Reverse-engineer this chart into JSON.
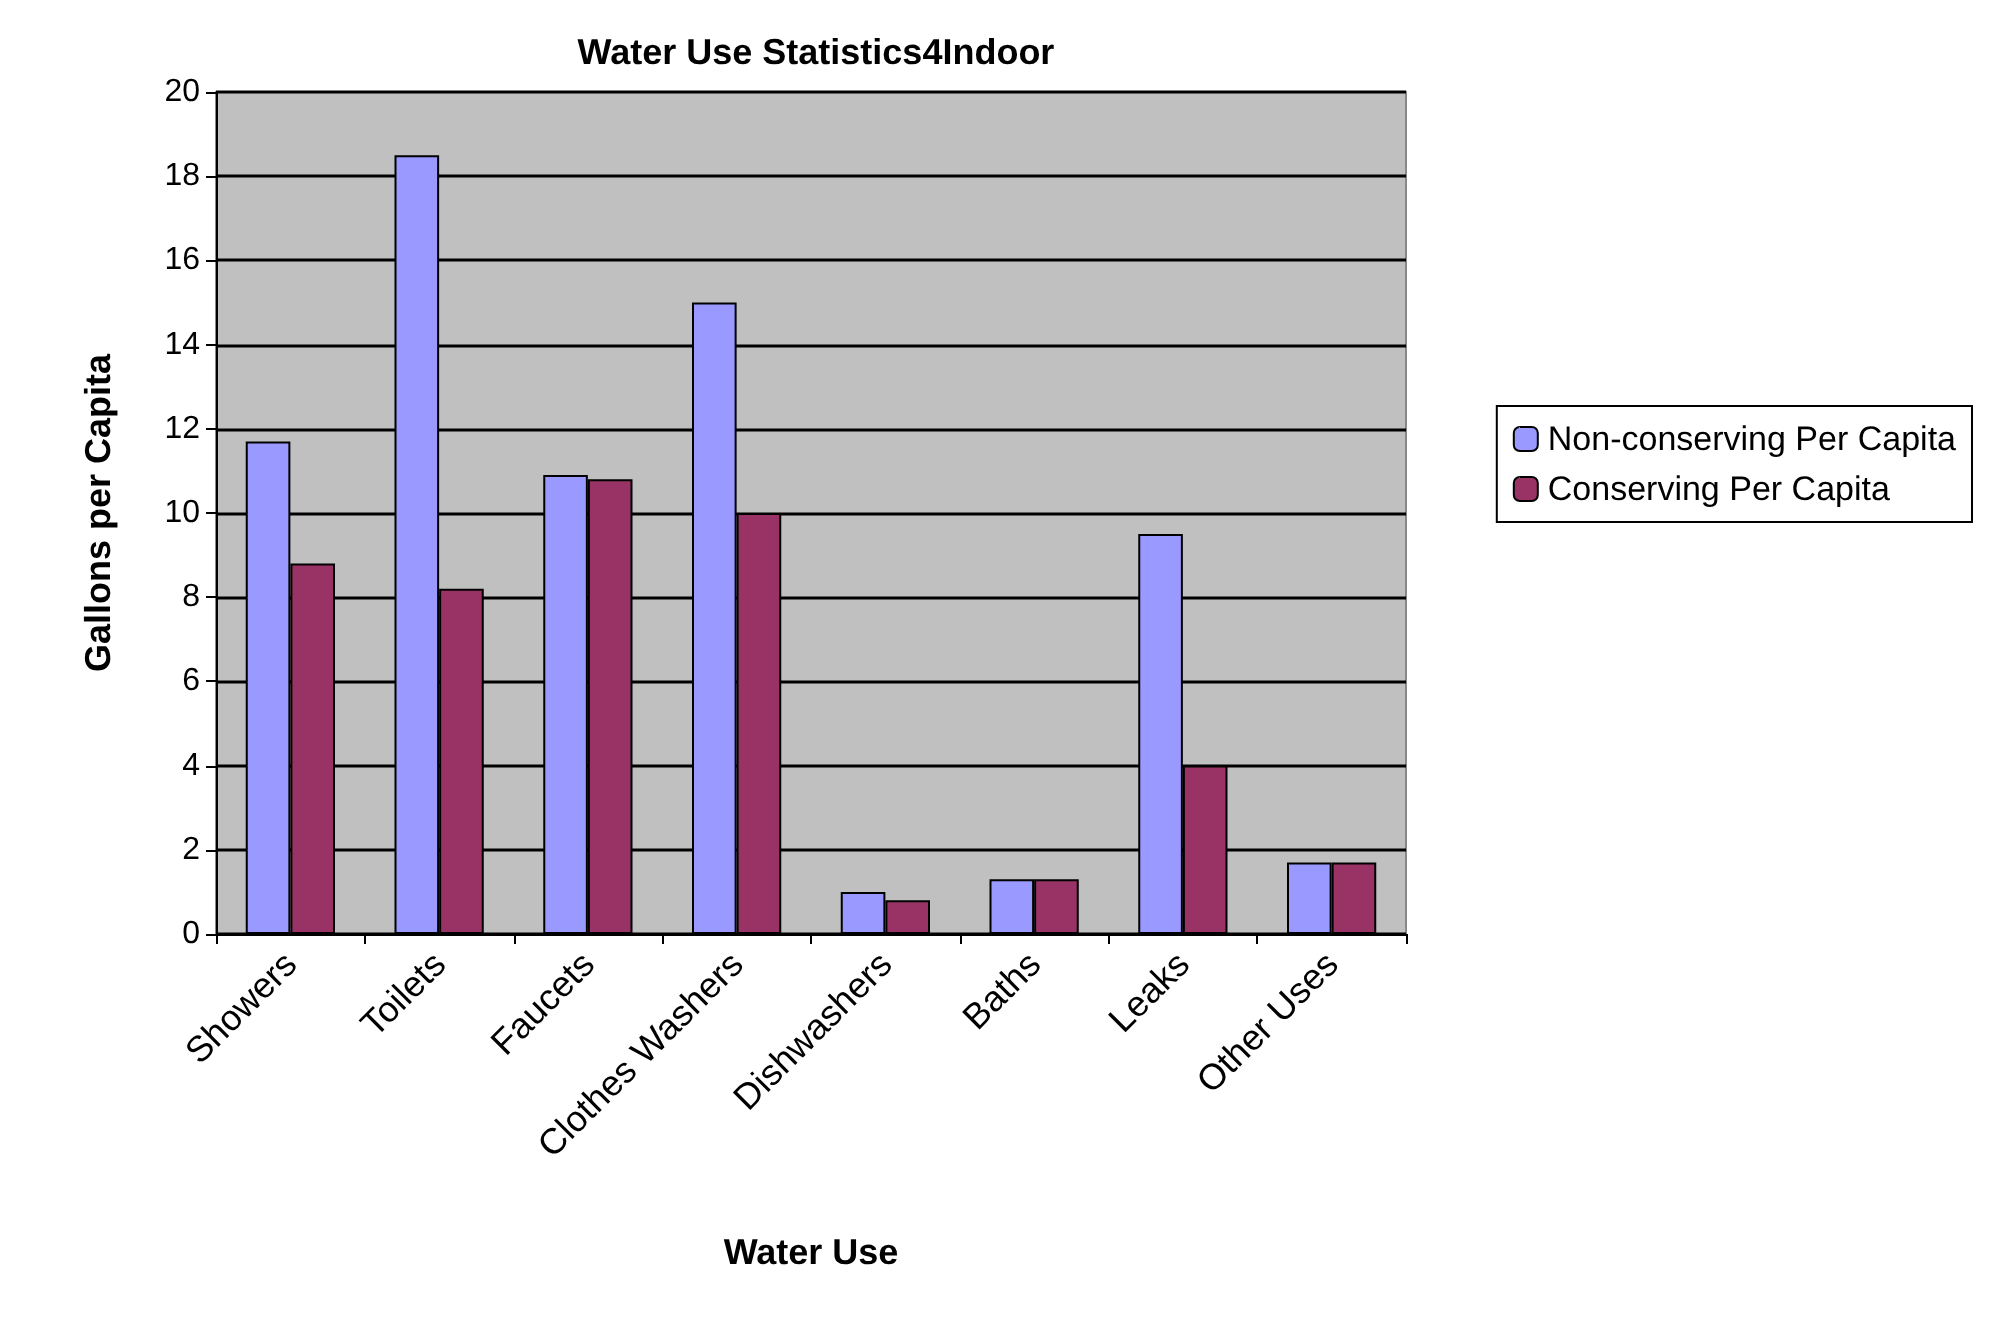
{
  "chart_data": {
    "type": "bar",
    "title": "Water Use Statistics4Indoor",
    "xlabel": "Water Use",
    "ylabel": "Gallons per Capita",
    "categories": [
      "Showers",
      "Toilets",
      "Faucets",
      "Clothes Washers",
      "Dishwashers",
      "Baths",
      "Leaks",
      "Other Uses"
    ],
    "series": [
      {
        "name": "Non-conserving Per Capita",
        "color": "#9999ff",
        "values": [
          11.7,
          18.5,
          10.9,
          15.0,
          1.0,
          1.3,
          9.5,
          1.7
        ]
      },
      {
        "name": "Conserving Per Capita",
        "color": "#993366",
        "values": [
          8.8,
          8.2,
          10.8,
          10.0,
          0.8,
          1.3,
          4.0,
          1.7
        ]
      }
    ],
    "ylim": [
      0,
      20
    ],
    "yticks": [
      0,
      2,
      4,
      6,
      8,
      10,
      12,
      14,
      16,
      18,
      20
    ],
    "grid": "y",
    "legend": "right"
  }
}
